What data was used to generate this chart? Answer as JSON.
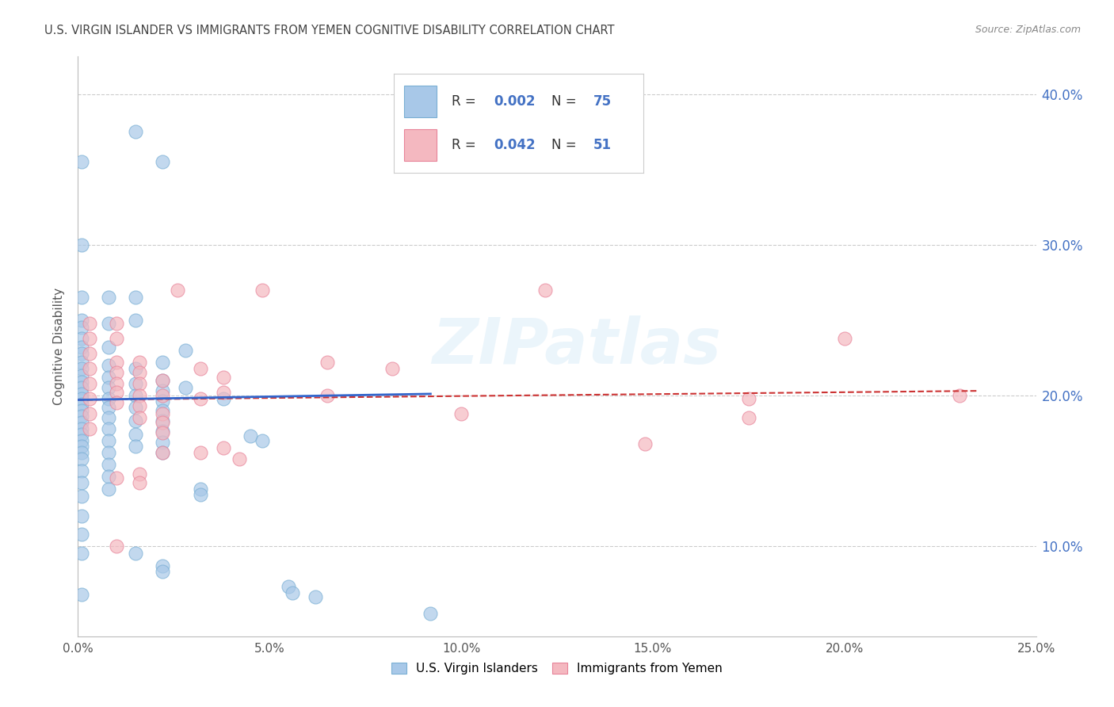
{
  "title": "U.S. VIRGIN ISLANDER VS IMMIGRANTS FROM YEMEN COGNITIVE DISABILITY CORRELATION CHART",
  "source": "Source: ZipAtlas.com",
  "ylabel": "Cognitive Disability",
  "xlim": [
    0.0,
    0.25
  ],
  "ylim": [
    0.04,
    0.425
  ],
  "xticks": [
    0.0,
    0.05,
    0.1,
    0.15,
    0.2,
    0.25
  ],
  "xtick_labels": [
    "0.0%",
    "5.0%",
    "10.0%",
    "15.0%",
    "20.0%",
    "25.0%"
  ],
  "yticks": [
    0.1,
    0.2,
    0.3,
    0.4
  ],
  "ytick_labels": [
    "10.0%",
    "20.0%",
    "30.0%",
    "40.0%"
  ],
  "grid_color": "#cccccc",
  "background_color": "#ffffff",
  "watermark": "ZIPatlas",
  "blue_color": "#a8c8e8",
  "blue_edge_color": "#7aafd4",
  "pink_color": "#f4b8c0",
  "pink_edge_color": "#e8849a",
  "blue_line_color": "#3366cc",
  "pink_line_color": "#cc3333",
  "blue_scatter": [
    [
      0.001,
      0.355
    ],
    [
      0.001,
      0.3
    ],
    [
      0.001,
      0.265
    ],
    [
      0.001,
      0.25
    ],
    [
      0.001,
      0.245
    ],
    [
      0.001,
      0.238
    ],
    [
      0.001,
      0.232
    ],
    [
      0.001,
      0.228
    ],
    [
      0.001,
      0.222
    ],
    [
      0.001,
      0.218
    ],
    [
      0.001,
      0.213
    ],
    [
      0.001,
      0.209
    ],
    [
      0.001,
      0.205
    ],
    [
      0.001,
      0.201
    ],
    [
      0.001,
      0.198
    ],
    [
      0.001,
      0.194
    ],
    [
      0.001,
      0.19
    ],
    [
      0.001,
      0.186
    ],
    [
      0.001,
      0.182
    ],
    [
      0.001,
      0.178
    ],
    [
      0.001,
      0.174
    ],
    [
      0.001,
      0.17
    ],
    [
      0.001,
      0.166
    ],
    [
      0.001,
      0.162
    ],
    [
      0.001,
      0.158
    ],
    [
      0.001,
      0.15
    ],
    [
      0.001,
      0.142
    ],
    [
      0.001,
      0.133
    ],
    [
      0.001,
      0.12
    ],
    [
      0.001,
      0.108
    ],
    [
      0.001,
      0.095
    ],
    [
      0.001,
      0.068
    ],
    [
      0.008,
      0.265
    ],
    [
      0.008,
      0.248
    ],
    [
      0.008,
      0.232
    ],
    [
      0.008,
      0.22
    ],
    [
      0.008,
      0.212
    ],
    [
      0.008,
      0.205
    ],
    [
      0.008,
      0.198
    ],
    [
      0.008,
      0.192
    ],
    [
      0.008,
      0.185
    ],
    [
      0.008,
      0.178
    ],
    [
      0.008,
      0.17
    ],
    [
      0.008,
      0.162
    ],
    [
      0.008,
      0.154
    ],
    [
      0.008,
      0.146
    ],
    [
      0.008,
      0.138
    ],
    [
      0.015,
      0.375
    ],
    [
      0.015,
      0.25
    ],
    [
      0.015,
      0.265
    ],
    [
      0.015,
      0.218
    ],
    [
      0.015,
      0.208
    ],
    [
      0.015,
      0.2
    ],
    [
      0.015,
      0.192
    ],
    [
      0.015,
      0.183
    ],
    [
      0.015,
      0.174
    ],
    [
      0.015,
      0.166
    ],
    [
      0.015,
      0.095
    ],
    [
      0.022,
      0.355
    ],
    [
      0.022,
      0.222
    ],
    [
      0.022,
      0.21
    ],
    [
      0.022,
      0.203
    ],
    [
      0.022,
      0.196
    ],
    [
      0.022,
      0.19
    ],
    [
      0.022,
      0.183
    ],
    [
      0.022,
      0.176
    ],
    [
      0.022,
      0.169
    ],
    [
      0.022,
      0.162
    ],
    [
      0.022,
      0.087
    ],
    [
      0.022,
      0.083
    ],
    [
      0.028,
      0.23
    ],
    [
      0.028,
      0.205
    ],
    [
      0.032,
      0.138
    ],
    [
      0.032,
      0.134
    ],
    [
      0.038,
      0.198
    ],
    [
      0.045,
      0.173
    ],
    [
      0.048,
      0.17
    ],
    [
      0.055,
      0.073
    ],
    [
      0.056,
      0.069
    ],
    [
      0.062,
      0.066
    ],
    [
      0.092,
      0.055
    ]
  ],
  "pink_scatter": [
    [
      0.003,
      0.248
    ],
    [
      0.003,
      0.238
    ],
    [
      0.003,
      0.228
    ],
    [
      0.003,
      0.218
    ],
    [
      0.003,
      0.208
    ],
    [
      0.003,
      0.198
    ],
    [
      0.003,
      0.188
    ],
    [
      0.003,
      0.178
    ],
    [
      0.01,
      0.248
    ],
    [
      0.01,
      0.238
    ],
    [
      0.01,
      0.222
    ],
    [
      0.01,
      0.215
    ],
    [
      0.01,
      0.208
    ],
    [
      0.01,
      0.202
    ],
    [
      0.01,
      0.195
    ],
    [
      0.01,
      0.145
    ],
    [
      0.01,
      0.1
    ],
    [
      0.016,
      0.222
    ],
    [
      0.016,
      0.215
    ],
    [
      0.016,
      0.208
    ],
    [
      0.016,
      0.2
    ],
    [
      0.016,
      0.193
    ],
    [
      0.016,
      0.185
    ],
    [
      0.016,
      0.148
    ],
    [
      0.016,
      0.142
    ],
    [
      0.022,
      0.21
    ],
    [
      0.022,
      0.2
    ],
    [
      0.022,
      0.188
    ],
    [
      0.022,
      0.182
    ],
    [
      0.022,
      0.175
    ],
    [
      0.022,
      0.162
    ],
    [
      0.026,
      0.27
    ],
    [
      0.032,
      0.218
    ],
    [
      0.032,
      0.198
    ],
    [
      0.032,
      0.162
    ],
    [
      0.038,
      0.212
    ],
    [
      0.038,
      0.202
    ],
    [
      0.038,
      0.165
    ],
    [
      0.042,
      0.158
    ],
    [
      0.048,
      0.27
    ],
    [
      0.065,
      0.222
    ],
    [
      0.065,
      0.2
    ],
    [
      0.082,
      0.218
    ],
    [
      0.1,
      0.188
    ],
    [
      0.122,
      0.27
    ],
    [
      0.175,
      0.198
    ],
    [
      0.2,
      0.238
    ],
    [
      0.23,
      0.2
    ],
    [
      0.175,
      0.185
    ],
    [
      0.148,
      0.168
    ]
  ],
  "blue_trend_x": [
    0.0,
    0.092
  ],
  "blue_trend_y": [
    0.197,
    0.201
  ],
  "pink_trend_x": [
    0.0,
    0.235
  ],
  "pink_trend_y": [
    0.197,
    0.203
  ]
}
